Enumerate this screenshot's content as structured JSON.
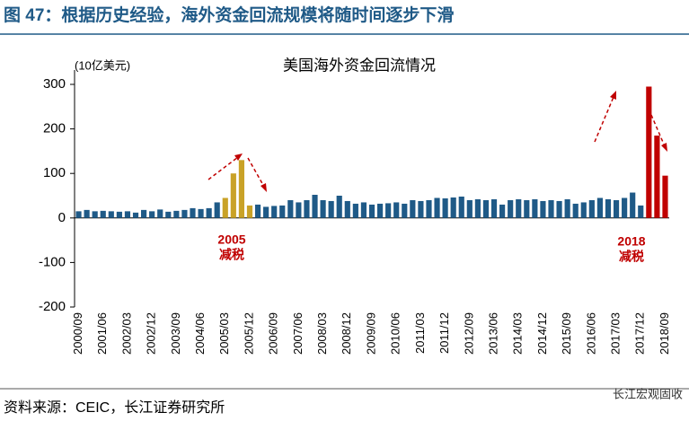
{
  "header": {
    "title": "图 47：根据历史经验，海外资金回流规模将随时间逐步下滑"
  },
  "chart_data": {
    "type": "bar",
    "title": "美国海外资金回流情况",
    "y_label": "(10亿美元)",
    "categories": [
      "2000/09",
      null,
      null,
      "2001/06",
      null,
      null,
      "2002/03",
      null,
      null,
      "2002/12",
      null,
      null,
      "2003/09",
      null,
      null,
      "2004/06",
      null,
      null,
      "2005/03",
      null,
      null,
      "2005/12",
      null,
      null,
      "2006/09",
      null,
      null,
      "2007/06",
      null,
      null,
      "2008/03",
      null,
      null,
      "2008/12",
      null,
      null,
      "2009/09",
      null,
      null,
      "2010/06",
      null,
      null,
      "2011/03",
      null,
      null,
      "2011/12",
      null,
      null,
      "2012/09",
      null,
      null,
      "2013/06",
      null,
      null,
      "2014/03",
      null,
      null,
      "2014/12",
      null,
      null,
      "2015/09",
      null,
      null,
      "2016/06",
      null,
      null,
      "2017/03",
      null,
      null,
      "2017/12",
      null,
      null,
      "2018/09"
    ],
    "values": [
      15,
      18,
      15,
      16,
      15,
      14,
      15,
      12,
      18,
      15,
      19,
      14,
      16,
      18,
      22,
      20,
      22,
      35,
      45,
      100,
      130,
      28,
      30,
      25,
      27,
      28,
      40,
      35,
      40,
      52,
      40,
      38,
      50,
      38,
      32,
      35,
      30,
      32,
      33,
      35,
      32,
      40,
      38,
      40,
      45,
      44,
      46,
      48,
      40,
      42,
      40,
      42,
      30,
      40,
      42,
      40,
      42,
      38,
      40,
      38,
      42,
      32,
      35,
      40,
      45,
      42,
      40,
      45,
      57,
      28,
      295,
      185,
      95
    ],
    "colors": [
      "#1f5a87",
      "#1f5a87",
      "#1f5a87",
      "#1f5a87",
      "#1f5a87",
      "#1f5a87",
      "#1f5a87",
      "#1f5a87",
      "#1f5a87",
      "#1f5a87",
      "#1f5a87",
      "#1f5a87",
      "#1f5a87",
      "#1f5a87",
      "#1f5a87",
      "#1f5a87",
      "#1f5a87",
      "#1f5a87",
      "#c9a227",
      "#c9a227",
      "#c9a227",
      "#c9a227",
      "#1f5a87",
      "#1f5a87",
      "#1f5a87",
      "#1f5a87",
      "#1f5a87",
      "#1f5a87",
      "#1f5a87",
      "#1f5a87",
      "#1f5a87",
      "#1f5a87",
      "#1f5a87",
      "#1f5a87",
      "#1f5a87",
      "#1f5a87",
      "#1f5a87",
      "#1f5a87",
      "#1f5a87",
      "#1f5a87",
      "#1f5a87",
      "#1f5a87",
      "#1f5a87",
      "#1f5a87",
      "#1f5a87",
      "#1f5a87",
      "#1f5a87",
      "#1f5a87",
      "#1f5a87",
      "#1f5a87",
      "#1f5a87",
      "#1f5a87",
      "#1f5a87",
      "#1f5a87",
      "#1f5a87",
      "#1f5a87",
      "#1f5a87",
      "#1f5a87",
      "#1f5a87",
      "#1f5a87",
      "#1f5a87",
      "#1f5a87",
      "#1f5a87",
      "#1f5a87",
      "#1f5a87",
      "#1f5a87",
      "#1f5a87",
      "#1f5a87",
      "#1f5a87",
      "#1f5a87",
      "#c00000",
      "#c00000",
      "#c00000"
    ],
    "ylim": [
      -200,
      300
    ],
    "yticks": [
      -200,
      -100,
      0,
      100,
      200,
      300
    ],
    "annotations": [
      {
        "lines": [
          "2005",
          "减税"
        ]
      },
      {
        "lines": [
          "2018",
          "减税"
        ]
      }
    ]
  },
  "footer": {
    "source": "资料来源：CEIC，长江证券研究所",
    "watermark": "长江宏观固收"
  }
}
